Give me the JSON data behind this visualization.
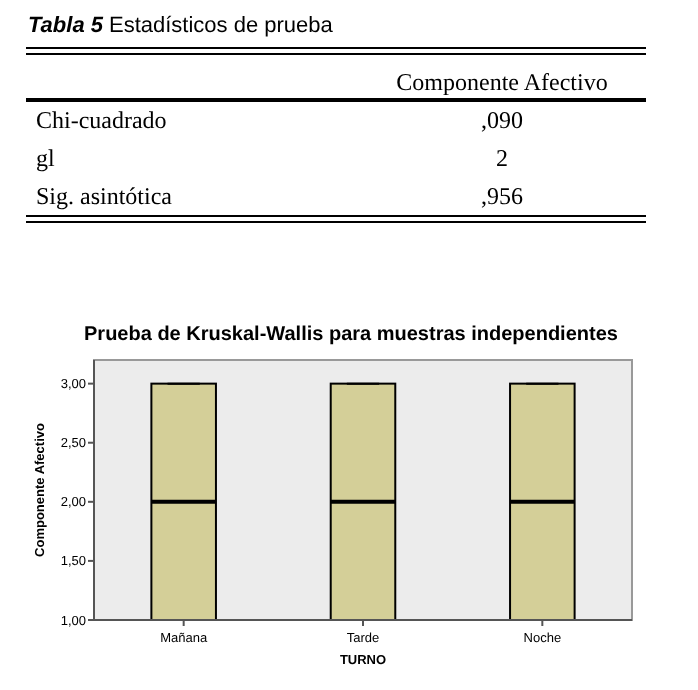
{
  "chart_data": {
    "type": "box",
    "title": "Prueba de Kruskal-Wallis para muestras independientes",
    "xlabel": "TURNO",
    "ylabel": "Componente Afectivo",
    "categories": [
      "Mañana",
      "Tarde",
      "Noche"
    ],
    "boxes": [
      {
        "low": 1,
        "q1": 1,
        "median": 2,
        "q3": 3,
        "high": 3
      },
      {
        "low": 1,
        "q1": 1,
        "median": 2,
        "q3": 3,
        "high": 3
      },
      {
        "low": 1,
        "q1": 1,
        "median": 2,
        "q3": 3,
        "high": 3
      }
    ],
    "color": "#d4cf98",
    "ylim": [
      1,
      3.2
    ],
    "yticks": [
      {
        "value": 1,
        "label": "1,00"
      },
      {
        "value": 1.5,
        "label": "1,50"
      },
      {
        "value": 2,
        "label": "2,00"
      },
      {
        "value": 2.5,
        "label": "2,50"
      },
      {
        "value": 3,
        "label": "3,00"
      }
    ],
    "annotations": [
      "Tabla 5",
      "Estadísticos de prueba",
      "Componente Afectivo",
      "Chi-cuadrado",
      ",090",
      "gl",
      "2",
      "Sig. asintótica",
      ",956"
    ]
  }
}
